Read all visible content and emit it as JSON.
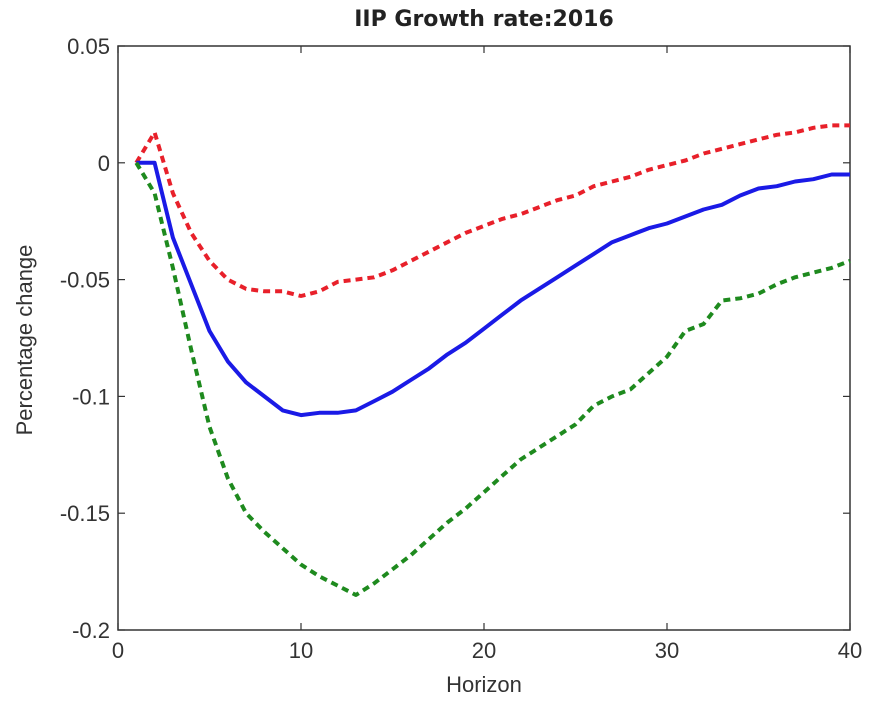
{
  "chart_data": {
    "type": "line",
    "title": "IIP Growth rate:2016",
    "xlabel": "Horizon",
    "ylabel": "Percentage change",
    "xlim": [
      0,
      40
    ],
    "ylim": [
      -0.2,
      0.05
    ],
    "xticks": [
      0,
      10,
      20,
      30,
      40
    ],
    "xtick_labels": [
      "0",
      "10",
      "20",
      "30",
      "40"
    ],
    "yticks": [
      0.05,
      0,
      -0.05,
      -0.1,
      -0.15,
      -0.2
    ],
    "ytick_labels": [
      "0.05",
      "0",
      "-0.05",
      "-0.1",
      "-0.15",
      "-0.2"
    ],
    "grid": false,
    "legend": "none",
    "series": [
      {
        "color": "#e8202a",
        "style": "dashed",
        "points": [
          [
            1,
            0
          ],
          [
            2,
            0.013
          ],
          [
            3,
            -0.013
          ],
          [
            4,
            -0.03
          ],
          [
            5,
            -0.042
          ],
          [
            6,
            -0.05
          ],
          [
            7,
            -0.054
          ],
          [
            8,
            -0.055
          ],
          [
            9,
            -0.055
          ],
          [
            10,
            -0.057
          ],
          [
            11,
            -0.055
          ],
          [
            12,
            -0.051
          ],
          [
            13,
            -0.05
          ],
          [
            14,
            -0.049
          ],
          [
            15,
            -0.046
          ],
          [
            16,
            -0.042
          ],
          [
            17,
            -0.038
          ],
          [
            18,
            -0.034
          ],
          [
            19,
            -0.03
          ],
          [
            20,
            -0.027
          ],
          [
            21,
            -0.024
          ],
          [
            22,
            -0.022
          ],
          [
            23,
            -0.019
          ],
          [
            24,
            -0.016
          ],
          [
            25,
            -0.014
          ],
          [
            26,
            -0.01
          ],
          [
            27,
            -0.008
          ],
          [
            28,
            -0.006
          ],
          [
            29,
            -0.003
          ],
          [
            30,
            -0.001
          ],
          [
            31,
            0.001
          ],
          [
            32,
            0.004
          ],
          [
            33,
            0.006
          ],
          [
            34,
            0.008
          ],
          [
            35,
            0.01
          ],
          [
            36,
            0.012
          ],
          [
            37,
            0.013
          ],
          [
            38,
            0.015
          ],
          [
            39,
            0.016
          ],
          [
            40,
            0.016
          ]
        ]
      },
      {
        "color": "#1a1ae6",
        "style": "solid",
        "points": [
          [
            1,
            0
          ],
          [
            2,
            0
          ],
          [
            3,
            -0.032
          ],
          [
            4,
            -0.052
          ],
          [
            5,
            -0.072
          ],
          [
            6,
            -0.085
          ],
          [
            7,
            -0.094
          ],
          [
            8,
            -0.1
          ],
          [
            9,
            -0.106
          ],
          [
            10,
            -0.108
          ],
          [
            11,
            -0.107
          ],
          [
            12,
            -0.107
          ],
          [
            13,
            -0.106
          ],
          [
            14,
            -0.102
          ],
          [
            15,
            -0.098
          ],
          [
            16,
            -0.093
          ],
          [
            17,
            -0.088
          ],
          [
            18,
            -0.082
          ],
          [
            19,
            -0.077
          ],
          [
            20,
            -0.071
          ],
          [
            21,
            -0.065
          ],
          [
            22,
            -0.059
          ],
          [
            23,
            -0.054
          ],
          [
            24,
            -0.049
          ],
          [
            25,
            -0.044
          ],
          [
            26,
            -0.039
          ],
          [
            27,
            -0.034
          ],
          [
            28,
            -0.031
          ],
          [
            29,
            -0.028
          ],
          [
            30,
            -0.026
          ],
          [
            31,
            -0.023
          ],
          [
            32,
            -0.02
          ],
          [
            33,
            -0.018
          ],
          [
            34,
            -0.014
          ],
          [
            35,
            -0.011
          ],
          [
            36,
            -0.01
          ],
          [
            37,
            -0.008
          ],
          [
            38,
            -0.007
          ],
          [
            39,
            -0.005
          ],
          [
            40,
            -0.005
          ]
        ]
      },
      {
        "color": "#1e8a1e",
        "style": "dashed",
        "points": [
          [
            1,
            0
          ],
          [
            2,
            -0.013
          ],
          [
            3,
            -0.045
          ],
          [
            4,
            -0.08
          ],
          [
            5,
            -0.113
          ],
          [
            6,
            -0.135
          ],
          [
            7,
            -0.15
          ],
          [
            8,
            -0.158
          ],
          [
            9,
            -0.165
          ],
          [
            10,
            -0.172
          ],
          [
            11,
            -0.177
          ],
          [
            12,
            -0.181
          ],
          [
            13,
            -0.185
          ],
          [
            14,
            -0.18
          ],
          [
            15,
            -0.174
          ],
          [
            16,
            -0.168
          ],
          [
            17,
            -0.161
          ],
          [
            18,
            -0.154
          ],
          [
            19,
            -0.148
          ],
          [
            20,
            -0.141
          ],
          [
            21,
            -0.134
          ],
          [
            22,
            -0.127
          ],
          [
            23,
            -0.122
          ],
          [
            24,
            -0.117
          ],
          [
            25,
            -0.112
          ],
          [
            26,
            -0.104
          ],
          [
            27,
            -0.1
          ],
          [
            28,
            -0.097
          ],
          [
            29,
            -0.09
          ],
          [
            30,
            -0.083
          ],
          [
            31,
            -0.072
          ],
          [
            32,
            -0.069
          ],
          [
            33,
            -0.059
          ],
          [
            34,
            -0.058
          ],
          [
            35,
            -0.056
          ],
          [
            36,
            -0.052
          ],
          [
            37,
            -0.049
          ],
          [
            38,
            -0.047
          ],
          [
            39,
            -0.045
          ],
          [
            40,
            -0.042
          ]
        ]
      }
    ]
  }
}
